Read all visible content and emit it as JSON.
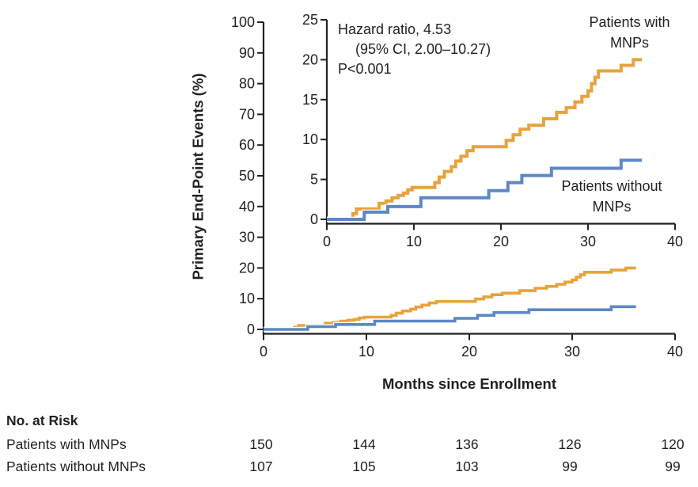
{
  "colors": {
    "with_mnps": "#E8A23D",
    "without_mnps": "#5C88C5",
    "axis": "#231F20",
    "text": "#231F20",
    "background": "#FFFFFF"
  },
  "annotation": {
    "line1": "Hazard ratio, 4.53",
    "line2": "(95% CI, 2.00–10.27)",
    "line3": "P<0.001"
  },
  "labels": {
    "y_axis": "Primary End-Point Events (%)",
    "x_axis": "Months since Enrollment",
    "with_mnps_line1": "Patients with",
    "with_mnps_line2": "MNPs",
    "without_mnps_line1": "Patients without",
    "without_mnps_line2": "MNPs"
  },
  "at_risk": {
    "title": "No. at Risk",
    "timepoints": [
      0,
      10,
      20,
      30,
      40
    ],
    "rows": [
      {
        "label": "Patients with MNPs",
        "values": [
          "150",
          "144",
          "136",
          "126",
          "120"
        ]
      },
      {
        "label": "Patients without MNPs",
        "values": [
          "107",
          "105",
          "103",
          "99",
          "99"
        ]
      }
    ]
  },
  "chart_data": {
    "type": "line",
    "step_style": "step-after",
    "title": "",
    "xlabel": "Months since Enrollment",
    "ylabel": "Primary End-Point Events (%)",
    "annotations": [
      "Hazard ratio, 4.53",
      "(95% CI, 2.00–10.27)",
      "P<0.001"
    ],
    "legend_position": "labels-at-curve-ends",
    "grid": false,
    "x_start": 0,
    "x_end": 36.2,
    "main_axes": {
      "xlim": [
        0,
        40
      ],
      "ylim": [
        0,
        100
      ],
      "xticks": [
        0,
        10,
        20,
        30,
        40
      ],
      "yticks": [
        0,
        10,
        20,
        30,
        40,
        50,
        60,
        70,
        80,
        90,
        100
      ]
    },
    "inset_axes": {
      "xlim": [
        0,
        40
      ],
      "ylim": [
        0,
        25
      ],
      "xticks": [
        0,
        10,
        20,
        30,
        40
      ],
      "yticks": [
        0,
        5,
        10,
        15,
        20,
        25
      ]
    },
    "series": [
      {
        "name": "Patients with MNPs",
        "color_key": "with_mnps",
        "events": [
          [
            3.0,
            0.7
          ],
          [
            3.4,
            1.3
          ],
          [
            6.0,
            2.0
          ],
          [
            6.8,
            2.3
          ],
          [
            7.5,
            2.7
          ],
          [
            8.2,
            3.0
          ],
          [
            8.8,
            3.3
          ],
          [
            9.3,
            3.7
          ],
          [
            9.8,
            4.0
          ],
          [
            12.4,
            4.6
          ],
          [
            12.9,
            5.3
          ],
          [
            13.5,
            6.0
          ],
          [
            14.3,
            6.6
          ],
          [
            14.8,
            7.3
          ],
          [
            15.4,
            7.9
          ],
          [
            16.1,
            8.6
          ],
          [
            16.8,
            9.1
          ],
          [
            20.6,
            9.9
          ],
          [
            21.4,
            10.6
          ],
          [
            22.2,
            11.3
          ],
          [
            23.2,
            11.8
          ],
          [
            24.9,
            12.6
          ],
          [
            26.4,
            13.4
          ],
          [
            27.5,
            14.0
          ],
          [
            28.5,
            14.7
          ],
          [
            29.3,
            15.4
          ],
          [
            30.0,
            16.1
          ],
          [
            30.4,
            17.0
          ],
          [
            30.8,
            17.8
          ],
          [
            31.2,
            18.6
          ],
          [
            33.8,
            19.3
          ],
          [
            35.2,
            20.0
          ]
        ]
      },
      {
        "name": "Patients without MNPs",
        "color_key": "without_mnps",
        "events": [
          [
            4.3,
            0.9
          ],
          [
            7.0,
            1.6
          ],
          [
            10.8,
            2.7
          ],
          [
            18.6,
            3.6
          ],
          [
            20.8,
            4.6
          ],
          [
            22.4,
            5.5
          ],
          [
            25.8,
            6.4
          ],
          [
            33.8,
            7.4
          ]
        ]
      }
    ]
  }
}
